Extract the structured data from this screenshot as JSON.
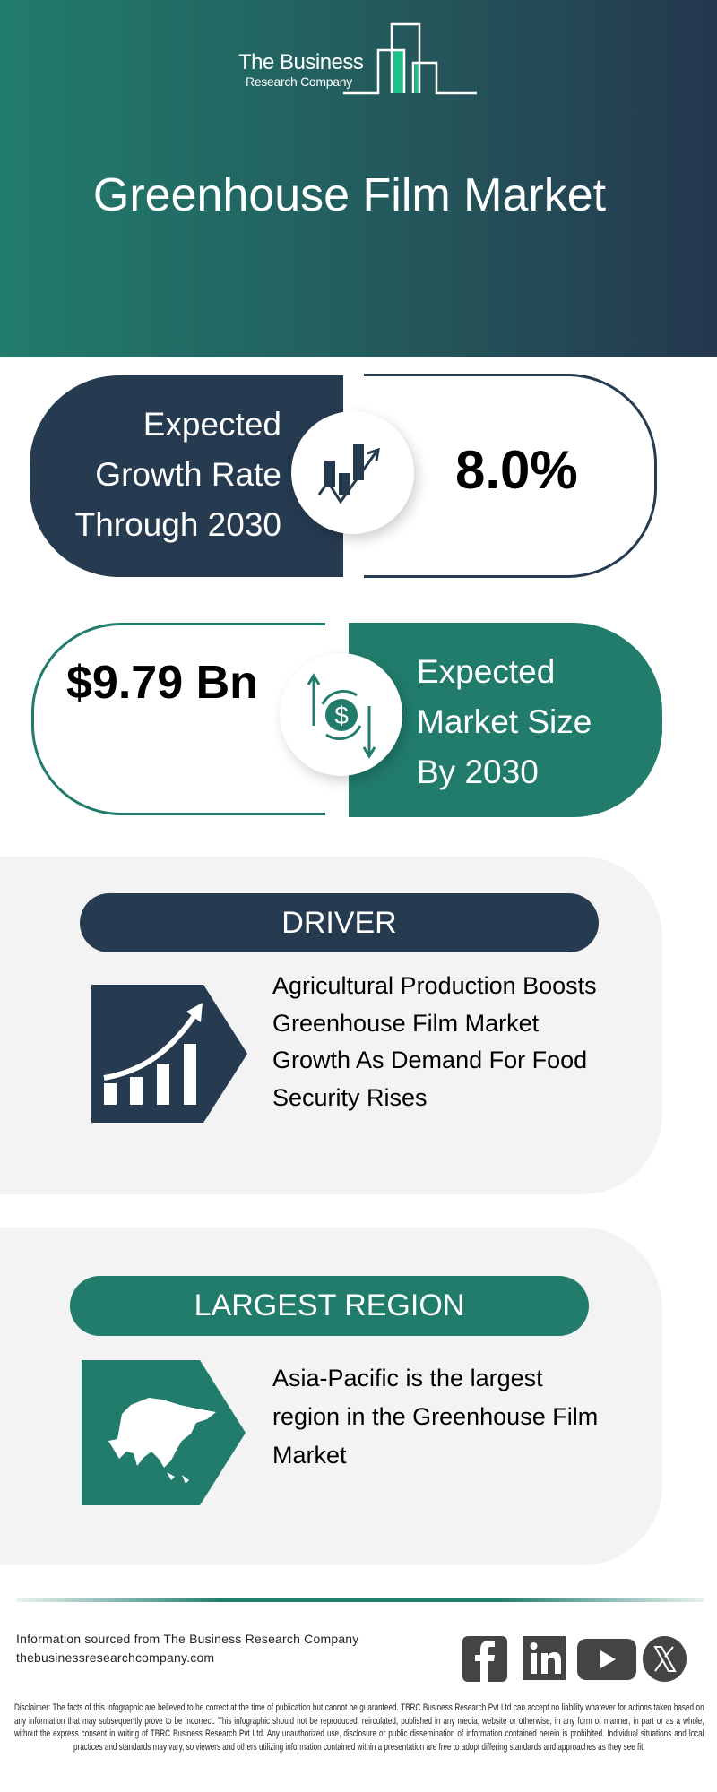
{
  "brand": {
    "line1": "The Business",
    "line2": "Research Company"
  },
  "title": "Greenhouse Film Market",
  "growth": {
    "label_lines": [
      "Expected",
      "Growth Rate",
      "Through 2030"
    ],
    "value": "8.0%"
  },
  "market_size": {
    "value": "$9.79 Bn",
    "label_lines": [
      "Expected",
      "Market Size",
      "By 2030"
    ]
  },
  "driver": {
    "heading": "DRIVER",
    "lines": [
      "Agricultural Production Boosts",
      "Greenhouse Film Market",
      "Growth As Demand For Food",
      "Security Rises"
    ]
  },
  "region": {
    "heading": "LARGEST REGION",
    "lines": [
      "Asia-Pacific is the largest",
      "region in the Greenhouse Film",
      "Market"
    ]
  },
  "footer": {
    "source": "Information sourced from The Business Research Company",
    "website": "thebusinessresearchcompany.com",
    "social": [
      "facebook-icon",
      "linkedin-icon",
      "youtube-icon",
      "x-icon"
    ],
    "disclaimer": "Disclaimer: The facts of this infographic are believed to be correct at the time of publication but cannot be guaranteed. TBRC Business Research Pvt Ltd can accept no liability whatever for actions taken based on any information that may subsequently prove to be incorrect. This infographic should not be reproduced, reirculated, published in any media, website or otherwise, in any form or manner, in part or as a whole, without the express consent in writing of TBRC Business Research Pvt Ltd. Any unauthorized use, disclosure or public dissemination of information contained herein is prohibited. Individual situations and local practices and standards may vary, so viewers and others utilizing information contained within a presentation are free to adopt differing standards and approaches as they see fit."
  },
  "colors": {
    "navy": "#263a50",
    "teal": "#217c6c",
    "card": "#f3f3f3",
    "accent_green": "#1fbf8a"
  }
}
